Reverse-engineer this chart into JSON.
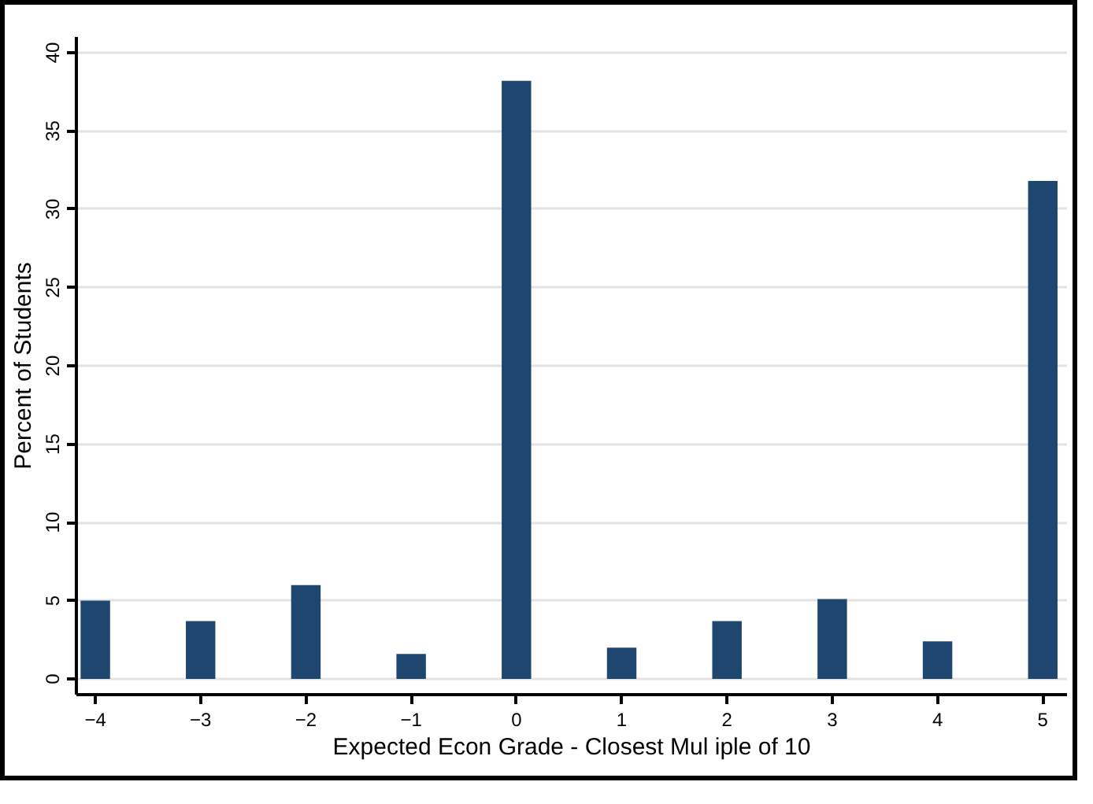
{
  "chart_data": {
    "type": "bar",
    "xlabel": "Expected Econ Grade - Closest Mul iple of 10",
    "ylabel": "Percent of Students",
    "x": [
      -4,
      -3,
      -2,
      -1,
      0,
      1,
      2,
      3,
      4,
      5
    ],
    "values": [
      5.0,
      3.7,
      6.0,
      1.6,
      38.2,
      2.0,
      3.7,
      5.1,
      2.4,
      31.8
    ],
    "color": "#1f466e",
    "xlim": [
      -4.18,
      5.23
    ],
    "ylim": [
      -1,
      41
    ],
    "xticks": [
      -4,
      -3,
      -2,
      -1,
      0,
      1,
      2,
      3,
      4,
      5
    ],
    "yticks": [
      0,
      5,
      10,
      15,
      20,
      25,
      30,
      35,
      40
    ],
    "grid": "y"
  }
}
